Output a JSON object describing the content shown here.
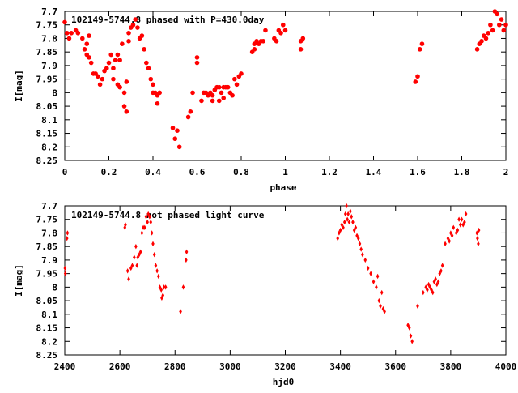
{
  "colors": {
    "points": "#ff0000",
    "axes": "#000000",
    "background": "#ffffff"
  },
  "chart_data": [
    {
      "type": "scatter",
      "title": "102149-5744.8 phased with P=430.0day",
      "xlabel": "phase",
      "ylabel": "I[mag]",
      "xlim": [
        0,
        2
      ],
      "ylim": [
        8.25,
        7.7
      ],
      "y_inverted": true,
      "grid": false,
      "xticks": [
        "0",
        "0.2",
        "0.4",
        "0.6",
        "0.8",
        "1",
        "1.2",
        "1.4",
        "1.6",
        "1.8",
        "2"
      ],
      "yticks": [
        "7.7",
        "7.75",
        "7.8",
        "7.85",
        "7.9",
        "7.95",
        "8",
        "8.05",
        "8.1",
        "8.15",
        "8.2",
        "8.25"
      ],
      "series": [
        {
          "marker": "circle",
          "points": [
            [
              0.0,
              7.74
            ],
            [
              0.01,
              7.78
            ],
            [
              0.02,
              7.8
            ],
            [
              0.03,
              7.78
            ],
            [
              0.05,
              7.77
            ],
            [
              0.06,
              7.78
            ],
            [
              0.08,
              7.8
            ],
            [
              0.09,
              7.84
            ],
            [
              0.1,
              7.86
            ],
            [
              0.1,
              7.82
            ],
            [
              0.11,
              7.79
            ],
            [
              0.11,
              7.87
            ],
            [
              0.12,
              7.89
            ],
            [
              0.13,
              7.93
            ],
            [
              0.14,
              7.93
            ],
            [
              0.15,
              7.94
            ],
            [
              0.16,
              7.97
            ],
            [
              0.17,
              7.95
            ],
            [
              0.18,
              7.92
            ],
            [
              0.19,
              7.91
            ],
            [
              0.2,
              7.89
            ],
            [
              0.21,
              7.86
            ],
            [
              0.22,
              7.91
            ],
            [
              0.22,
              7.95
            ],
            [
              0.23,
              7.88
            ],
            [
              0.24,
              7.86
            ],
            [
              0.24,
              7.97
            ],
            [
              0.25,
              7.88
            ],
            [
              0.25,
              7.98
            ],
            [
              0.26,
              7.82
            ],
            [
              0.27,
              8.0
            ],
            [
              0.27,
              8.05
            ],
            [
              0.28,
              8.07
            ],
            [
              0.28,
              7.96
            ],
            [
              0.29,
              7.78
            ],
            [
              0.29,
              7.81
            ],
            [
              0.3,
              7.76
            ],
            [
              0.31,
              7.75
            ],
            [
              0.32,
              7.73
            ],
            [
              0.33,
              7.76
            ],
            [
              0.34,
              7.8
            ],
            [
              0.35,
              7.79
            ],
            [
              0.36,
              7.84
            ],
            [
              0.37,
              7.89
            ],
            [
              0.38,
              7.91
            ],
            [
              0.39,
              7.95
            ],
            [
              0.4,
              7.97
            ],
            [
              0.4,
              8.0
            ],
            [
              0.41,
              8.0
            ],
            [
              0.42,
              8.01
            ],
            [
              0.42,
              8.04
            ],
            [
              0.43,
              8.0
            ],
            [
              0.49,
              8.13
            ],
            [
              0.5,
              8.17
            ],
            [
              0.51,
              8.14
            ],
            [
              0.52,
              8.2
            ],
            [
              0.56,
              8.09
            ],
            [
              0.57,
              8.07
            ],
            [
              0.58,
              8.0
            ],
            [
              0.6,
              7.87
            ],
            [
              0.6,
              7.89
            ],
            [
              0.62,
              8.03
            ],
            [
              0.63,
              8.0
            ],
            [
              0.64,
              8.0
            ],
            [
              0.65,
              8.01
            ],
            [
              0.66,
              8.0
            ],
            [
              0.67,
              8.01
            ],
            [
              0.67,
              8.03
            ],
            [
              0.68,
              7.99
            ],
            [
              0.69,
              7.98
            ],
            [
              0.7,
              7.98
            ],
            [
              0.7,
              8.03
            ],
            [
              0.71,
              8.0
            ],
            [
              0.72,
              7.98
            ],
            [
              0.72,
              8.02
            ],
            [
              0.73,
              7.98
            ],
            [
              0.74,
              7.98
            ],
            [
              0.75,
              8.0
            ],
            [
              0.76,
              8.01
            ],
            [
              0.77,
              7.95
            ],
            [
              0.78,
              7.97
            ],
            [
              0.79,
              7.94
            ],
            [
              0.8,
              7.93
            ],
            [
              0.85,
              7.85
            ],
            [
              0.86,
              7.84
            ],
            [
              0.86,
              7.82
            ],
            [
              0.87,
              7.81
            ],
            [
              0.88,
              7.82
            ],
            [
              0.89,
              7.81
            ],
            [
              0.9,
              7.81
            ],
            [
              0.91,
              7.77
            ],
            [
              0.95,
              7.8
            ],
            [
              0.96,
              7.81
            ],
            [
              0.97,
              7.77
            ],
            [
              0.98,
              7.78
            ],
            [
              0.99,
              7.75
            ],
            [
              1.0,
              7.77
            ],
            [
              1.07,
              7.84
            ],
            [
              1.07,
              7.81
            ],
            [
              1.08,
              7.8
            ],
            [
              1.59,
              7.96
            ],
            [
              1.6,
              7.94
            ],
            [
              1.61,
              7.84
            ],
            [
              1.62,
              7.82
            ],
            [
              1.87,
              7.84
            ],
            [
              1.88,
              7.82
            ],
            [
              1.89,
              7.81
            ],
            [
              1.9,
              7.79
            ],
            [
              1.91,
              7.8
            ],
            [
              1.92,
              7.78
            ],
            [
              1.93,
              7.75
            ],
            [
              1.94,
              7.77
            ],
            [
              1.95,
              7.7
            ],
            [
              1.96,
              7.71
            ],
            [
              1.97,
              7.75
            ],
            [
              1.98,
              7.73
            ],
            [
              1.99,
              7.77
            ],
            [
              2.0,
              7.75
            ]
          ]
        }
      ]
    },
    {
      "type": "scatter",
      "title": "102149-5744.8 not phased light curve",
      "xlabel": "hjd0",
      "ylabel": "I[mag]",
      "xlim": [
        2400,
        4000
      ],
      "ylim": [
        8.25,
        7.7
      ],
      "y_inverted": true,
      "grid": false,
      "xticks": [
        "2400",
        "2600",
        "2800",
        "3000",
        "3200",
        "3400",
        "3600",
        "3800",
        "4000"
      ],
      "yticks": [
        "7.7",
        "7.75",
        "7.8",
        "7.85",
        "7.9",
        "7.95",
        "8",
        "8.05",
        "8.1",
        "8.15",
        "8.2",
        "8.25"
      ],
      "series": [
        {
          "marker": "diamond",
          "points": [
            [
              2401,
              7.93
            ],
            [
              2402,
              7.95
            ],
            [
              2408,
              7.82
            ],
            [
              2410,
              7.8
            ],
            [
              2618,
              7.78
            ],
            [
              2620,
              7.77
            ],
            [
              2628,
              7.94
            ],
            [
              2632,
              7.97
            ],
            [
              2640,
              7.93
            ],
            [
              2645,
              7.92
            ],
            [
              2652,
              7.89
            ],
            [
              2658,
              7.85
            ],
            [
              2662,
              7.92
            ],
            [
              2665,
              7.89
            ],
            [
              2670,
              7.88
            ],
            [
              2675,
              7.87
            ],
            [
              2680,
              7.8
            ],
            [
              2685,
              7.78
            ],
            [
              2690,
              7.78
            ],
            [
              2695,
              7.74
            ],
            [
              2700,
              7.76
            ],
            [
              2703,
              7.73
            ],
            [
              2708,
              7.74
            ],
            [
              2712,
              7.76
            ],
            [
              2716,
              7.8
            ],
            [
              2720,
              7.84
            ],
            [
              2725,
              7.88
            ],
            [
              2730,
              7.92
            ],
            [
              2735,
              7.94
            ],
            [
              2740,
              7.96
            ],
            [
              2745,
              8.0
            ],
            [
              2750,
              8.01
            ],
            [
              2752,
              8.04
            ],
            [
              2756,
              8.03
            ],
            [
              2760,
              8.0
            ],
            [
              2766,
              8.0
            ],
            [
              2820,
              8.09
            ],
            [
              2830,
              8.0
            ],
            [
              2840,
              7.9
            ],
            [
              2842,
              7.87
            ],
            [
              3390,
              7.82
            ],
            [
              3395,
              7.8
            ],
            [
              3400,
              7.79
            ],
            [
              3405,
              7.77
            ],
            [
              3410,
              7.78
            ],
            [
              3415,
              7.76
            ],
            [
              3418,
              7.73
            ],
            [
              3422,
              7.7
            ],
            [
              3425,
              7.75
            ],
            [
              3428,
              7.73
            ],
            [
              3432,
              7.76
            ],
            [
              3436,
              7.72
            ],
            [
              3440,
              7.74
            ],
            [
              3445,
              7.76
            ],
            [
              3450,
              7.79
            ],
            [
              3455,
              7.78
            ],
            [
              3460,
              7.81
            ],
            [
              3465,
              7.82
            ],
            [
              3470,
              7.84
            ],
            [
              3475,
              7.86
            ],
            [
              3480,
              7.88
            ],
            [
              3490,
              7.9
            ],
            [
              3500,
              7.93
            ],
            [
              3510,
              7.95
            ],
            [
              3520,
              7.98
            ],
            [
              3530,
              8.0
            ],
            [
              3535,
              7.96
            ],
            [
              3540,
              8.05
            ],
            [
              3545,
              8.07
            ],
            [
              3550,
              8.02
            ],
            [
              3555,
              8.08
            ],
            [
              3560,
              8.09
            ],
            [
              3645,
              8.14
            ],
            [
              3650,
              8.15
            ],
            [
              3655,
              8.18
            ],
            [
              3660,
              8.2
            ],
            [
              3680,
              8.07
            ],
            [
              3700,
              8.02
            ],
            [
              3710,
              8.0
            ],
            [
              3715,
              8.01
            ],
            [
              3720,
              7.99
            ],
            [
              3725,
              8.0
            ],
            [
              3730,
              8.01
            ],
            [
              3735,
              8.02
            ],
            [
              3740,
              7.98
            ],
            [
              3745,
              7.97
            ],
            [
              3750,
              7.99
            ],
            [
              3755,
              7.98
            ],
            [
              3760,
              7.95
            ],
            [
              3765,
              7.94
            ],
            [
              3770,
              7.92
            ],
            [
              3780,
              7.84
            ],
            [
              3790,
              7.82
            ],
            [
              3795,
              7.83
            ],
            [
              3800,
              7.8
            ],
            [
              3805,
              7.81
            ],
            [
              3810,
              7.78
            ],
            [
              3820,
              7.8
            ],
            [
              3825,
              7.79
            ],
            [
              3830,
              7.75
            ],
            [
              3835,
              7.77
            ],
            [
              3840,
              7.75
            ],
            [
              3845,
              7.77
            ],
            [
              3850,
              7.76
            ],
            [
              3855,
              7.73
            ],
            [
              3895,
              7.8
            ],
            [
              3897,
              7.82
            ],
            [
              3900,
              7.84
            ],
            [
              3902,
              7.79
            ]
          ]
        }
      ]
    }
  ]
}
